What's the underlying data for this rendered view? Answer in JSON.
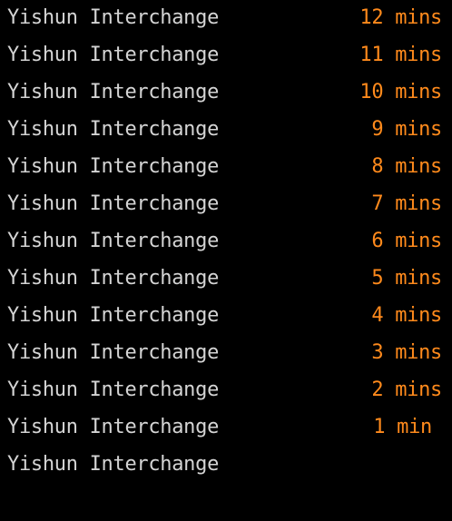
{
  "rows": [
    {
      "destination": "Yishun Interchange",
      "eta": "12 mins"
    },
    {
      "destination": "Yishun Interchange",
      "eta": "11 mins"
    },
    {
      "destination": "Yishun Interchange",
      "eta": "10 mins"
    },
    {
      "destination": "Yishun Interchange",
      "eta": "9 mins"
    },
    {
      "destination": "Yishun Interchange",
      "eta": "8 mins"
    },
    {
      "destination": "Yishun Interchange",
      "eta": "7 mins"
    },
    {
      "destination": "Yishun Interchange",
      "eta": "6 mins"
    },
    {
      "destination": "Yishun Interchange",
      "eta": "5 mins"
    },
    {
      "destination": "Yishun Interchange",
      "eta": "4 mins"
    },
    {
      "destination": "Yishun Interchange",
      "eta": "3 mins"
    },
    {
      "destination": "Yishun Interchange",
      "eta": "2 mins"
    },
    {
      "destination": "Yishun Interchange",
      "eta": "1 min"
    },
    {
      "destination": "Yishun Interchange",
      "eta": ""
    }
  ],
  "colors": {
    "background": "#000000",
    "destination_text": "#d4d4d4",
    "eta_text": "#ff8a1c"
  }
}
